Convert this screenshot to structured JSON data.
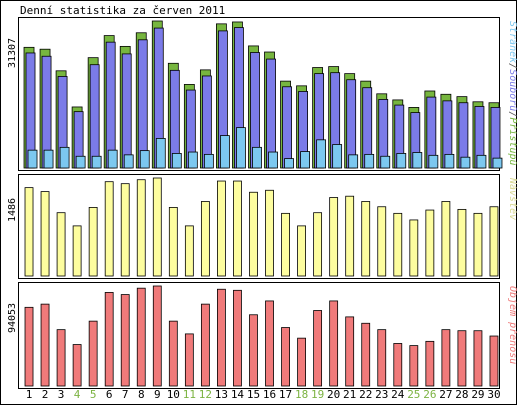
{
  "chart_data": {
    "type": "bar",
    "title": "Denní statistika za červen 2011",
    "days": [
      "1",
      "2",
      "3",
      "4",
      "5",
      "6",
      "7",
      "8",
      "9",
      "10",
      "11",
      "12",
      "13",
      "14",
      "15",
      "16",
      "17",
      "18",
      "19",
      "20",
      "21",
      "22",
      "23",
      "24",
      "25",
      "26",
      "27",
      "28",
      "29",
      "30"
    ],
    "weekend_days": [
      "4",
      "5",
      "11",
      "12",
      "18",
      "19",
      "25",
      "26"
    ],
    "colors": {
      "axis_frame": "#000000",
      "day_label": "#000000",
      "weekend_label": "#7cb342",
      "hits": "#77b63f",
      "files": "#7b7be8",
      "pages": "#7cc8f0",
      "visits": "#fdfd9f",
      "kbytes": "#f07a7a",
      "visits_label": "#d8d890",
      "kbytes_label": "#ee7a7a"
    },
    "panels": [
      {
        "key": "top",
        "ymax_label": "31307",
        "ymax": 31307,
        "side_label_parts": [
          {
            "text": "Stránek",
            "color": "#7cc8f0"
          },
          {
            "text": "/",
            "color": "#555555"
          },
          {
            "text": "Souborů",
            "color": "#7b7be8"
          },
          {
            "text": "/",
            "color": "#555555"
          },
          {
            "text": "Přístupů",
            "color": "#77b63f"
          }
        ],
        "series": [
          {
            "key": "hits",
            "values": [
              25700,
              25300,
              20700,
              13000,
              23500,
              28200,
              25900,
              28800,
              31307,
              22300,
              17800,
              20900,
              30700,
              31100,
              26000,
              24700,
              18500,
              17500,
              21400,
              21600,
              20100,
              18500,
              15800,
              14500,
              12900,
              16400,
              15700,
              15200,
              14100,
              13900
            ]
          },
          {
            "key": "files",
            "values": [
              24500,
              23800,
              19500,
              12000,
              22000,
              26800,
              24300,
              27300,
              29800,
              20800,
              16600,
              19600,
              29200,
              29900,
              24600,
              23200,
              17300,
              16300,
              20100,
              20300,
              18800,
              17100,
              14600,
              13400,
              11800,
              15100,
              14300,
              13900,
              13100,
              12900
            ]
          },
          {
            "key": "pages",
            "values": [
              3800,
              3800,
              4400,
              2500,
              2500,
              3800,
              2800,
              3700,
              6300,
              3100,
              3400,
              2900,
              6900,
              8600,
              4400,
              3400,
              2000,
              3500,
              6000,
              5000,
              2800,
              2900,
              2500,
              3100,
              3300,
              2700,
              2900,
              2300,
              2700,
              2100
            ]
          }
        ]
      },
      {
        "key": "middle",
        "ymax_label": "1486",
        "ymax": 1486,
        "side_label_parts": [
          {
            "text": "Návštěv",
            "color": "#d8d890"
          }
        ],
        "series": [
          {
            "key": "visits",
            "values": [
              1340,
              1280,
              960,
              760,
              1040,
              1430,
              1400,
              1460,
              1486,
              1040,
              760,
              1130,
              1440,
              1440,
              1270,
              1300,
              950,
              760,
              960,
              1190,
              1210,
              1130,
              1050,
              950,
              850,
              1000,
              1130,
              1010,
              950,
              1050
            ]
          }
        ]
      },
      {
        "key": "bottom",
        "ymax_label": "94053",
        "ymax": 94053,
        "side_label_parts": [
          {
            "text": "Objem přenosu",
            "color": "#ee7a7a"
          }
        ],
        "series": [
          {
            "key": "kbytes",
            "values": [
              74000,
              77000,
              53000,
              39000,
              61000,
              88000,
              86000,
              92000,
              94053,
              61000,
              49000,
              77000,
              91000,
              90000,
              67000,
              80000,
              55000,
              45000,
              71000,
              80000,
              65000,
              59000,
              53000,
              40000,
              38000,
              42000,
              53000,
              52000,
              52000,
              47000
            ]
          }
        ]
      }
    ]
  }
}
